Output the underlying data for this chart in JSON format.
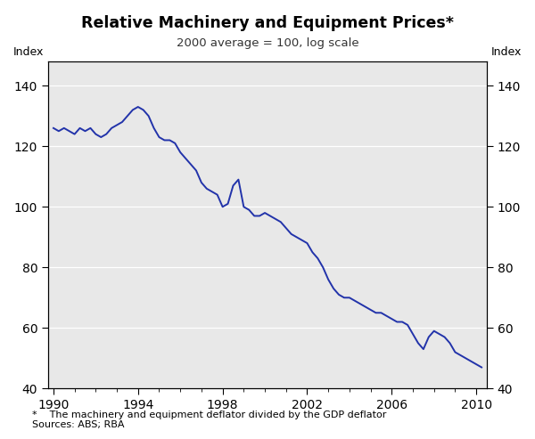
{
  "title": "Relative Machinery and Equipment Prices*",
  "subtitle": "2000 average = 100, log scale",
  "ylabel_left": "Index",
  "ylabel_right": "Index",
  "footnote": "*    The machinery and equipment deflator divided by the GDP deflator\nSources: ABS; RBA",
  "line_color": "#2233aa",
  "line_width": 1.4,
  "background_color": "#e8e8e8",
  "yticks": [
    40,
    60,
    80,
    100,
    120,
    140
  ],
  "ylim": [
    40,
    148
  ],
  "xlim": [
    1989.75,
    2010.5
  ],
  "xticks": [
    1990,
    1994,
    1998,
    2002,
    2006,
    2010
  ],
  "xvalues": [
    1990.0,
    1990.25,
    1990.5,
    1990.75,
    1991.0,
    1991.25,
    1991.5,
    1991.75,
    1992.0,
    1992.25,
    1992.5,
    1992.75,
    1993.0,
    1993.25,
    1993.5,
    1993.75,
    1994.0,
    1994.25,
    1994.5,
    1994.75,
    1995.0,
    1995.25,
    1995.5,
    1995.75,
    1996.0,
    1996.25,
    1996.5,
    1996.75,
    1997.0,
    1997.25,
    1997.5,
    1997.75,
    1998.0,
    1998.25,
    1998.5,
    1998.75,
    1999.0,
    1999.25,
    1999.5,
    1999.75,
    2000.0,
    2000.25,
    2000.5,
    2000.75,
    2001.0,
    2001.25,
    2001.5,
    2001.75,
    2002.0,
    2002.25,
    2002.5,
    2002.75,
    2003.0,
    2003.25,
    2003.5,
    2003.75,
    2004.0,
    2004.25,
    2004.5,
    2004.75,
    2005.0,
    2005.25,
    2005.5,
    2005.75,
    2006.0,
    2006.25,
    2006.5,
    2006.75,
    2007.0,
    2007.25,
    2007.5,
    2007.75,
    2008.0,
    2008.25,
    2008.5,
    2008.75,
    2009.0,
    2009.25,
    2009.5,
    2009.75,
    2010.0,
    2010.25
  ],
  "yvalues": [
    126,
    125,
    126,
    125,
    124,
    126,
    125,
    126,
    124,
    123,
    124,
    126,
    127,
    128,
    130,
    132,
    133,
    132,
    130,
    126,
    123,
    122,
    122,
    121,
    118,
    116,
    114,
    112,
    108,
    106,
    105,
    104,
    100,
    101,
    107,
    109,
    100,
    99,
    97,
    97,
    98,
    97,
    96,
    95,
    93,
    91,
    90,
    89,
    88,
    85,
    83,
    80,
    76,
    73,
    71,
    70,
    70,
    69,
    68,
    67,
    66,
    65,
    65,
    64,
    63,
    62,
    62,
    61,
    58,
    55,
    53,
    57,
    59,
    58,
    57,
    55,
    52,
    51,
    50,
    49,
    48,
    47
  ]
}
